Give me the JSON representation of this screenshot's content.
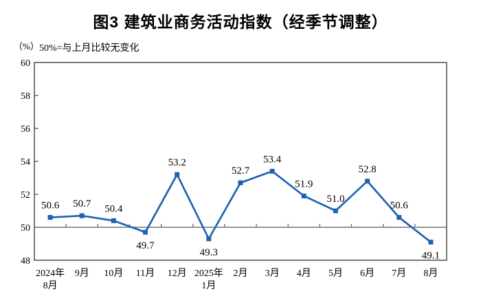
{
  "header": {
    "title": "图3 建筑业商务活动指数（经季节调整）"
  },
  "notes": {
    "unit": "（%）",
    "reference": "50%=与上月比较无变化"
  },
  "chart_data": {
    "type": "line",
    "title": "图3 建筑业商务活动指数（经季节调整）",
    "unit_label": "（%）",
    "note": "50%=与上月比较无变化",
    "categories": [
      [
        "2024年",
        "8月"
      ],
      [
        "9月"
      ],
      [
        "10月"
      ],
      [
        "11月"
      ],
      [
        "12月"
      ],
      [
        "2025年",
        "1月"
      ],
      [
        "2月"
      ],
      [
        "3月"
      ],
      [
        "4月"
      ],
      [
        "5月"
      ],
      [
        "6月"
      ],
      [
        "7月"
      ],
      [
        "8月"
      ]
    ],
    "values": [
      50.6,
      50.7,
      50.4,
      49.7,
      53.2,
      49.3,
      52.7,
      53.4,
      51.9,
      51.0,
      52.8,
      50.6,
      49.1
    ],
    "value_labels": [
      "50.6",
      "50.7",
      "50.4",
      "49.7",
      "53.2",
      "49.3",
      "52.7",
      "53.4",
      "51.9",
      "51.0",
      "52.8",
      "50.6",
      "49.1"
    ],
    "xlabel": "",
    "ylabel": "（%）",
    "ylim": [
      48,
      60
    ],
    "yticks": [
      48,
      50,
      52,
      54,
      56,
      58,
      60
    ],
    "reference_line": 50,
    "grid": false,
    "legend": "none",
    "marker": "square",
    "series_color": "#1E63B2",
    "axis_color": "#404040",
    "reference_line_color": "#595959"
  }
}
